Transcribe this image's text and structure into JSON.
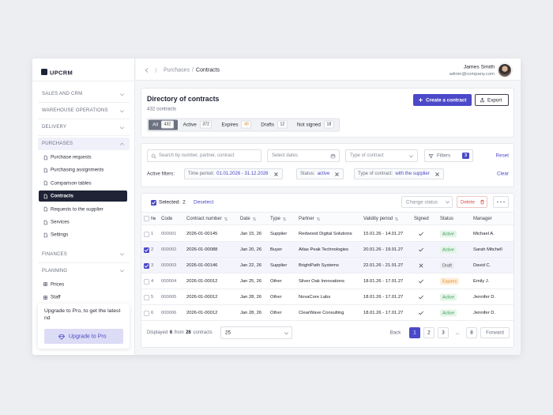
{
  "sidebar": {
    "logo": "UPCRM",
    "sections": [
      {
        "label": "SALES AND CRM"
      },
      {
        "label": "WAREHOUSE OPERATIONS"
      },
      {
        "label": "DELIVERY"
      },
      {
        "label": "PURCHASES",
        "expanded": true,
        "items": [
          {
            "label": "Purchase requests"
          },
          {
            "label": "Purchasing assignments"
          },
          {
            "label": "Comparison tables"
          },
          {
            "label": "Contracts",
            "active": true
          },
          {
            "label": "Requests to the supplier"
          },
          {
            "label": "Services"
          },
          {
            "label": "Settings"
          }
        ]
      },
      {
        "label": "FINANCES"
      },
      {
        "label": "PLANNING",
        "expanded": true,
        "items": [
          {
            "label": "Prices"
          },
          {
            "label": "Staff"
          }
        ]
      }
    ],
    "upgrade": {
      "text": "Upgrade to Pro, to get the latest nd",
      "button": "Upgrade to Pro"
    }
  },
  "header": {
    "breadcrumb": [
      "Purchases",
      "Contracts"
    ],
    "separator": "/",
    "user": {
      "name": "James Smith",
      "email": "admin@company.com"
    }
  },
  "directory": {
    "title": "Directory of contracts",
    "count_label": "432 contracts",
    "create": "Create a contract",
    "export": "Export",
    "tabs": [
      {
        "label": "All",
        "count": "432",
        "active": true
      },
      {
        "label": "Active",
        "count": "372"
      },
      {
        "label": "Expires",
        "count": "48",
        "tone": "warning"
      },
      {
        "label": "Drafts",
        "count": "12"
      },
      {
        "label": "Not signed",
        "count": "18"
      }
    ]
  },
  "filters": {
    "search_placeholder": "Search by number, partner, contract",
    "dates_placeholder": "Select dates",
    "type_placeholder": "Type of contract",
    "filters_button": "Filters",
    "filters_count": "3",
    "reset": "Reset",
    "active_label": "Active filters:",
    "chips": [
      {
        "key": "Time period:",
        "value": "01.01.2026 - 31.12.2026"
      },
      {
        "key": "Status:",
        "value": "active"
      },
      {
        "key": "Type of contract:",
        "value": "with the supplier"
      }
    ],
    "clear": "Clear"
  },
  "table": {
    "selected_label": "Selected:",
    "selected_count": "2",
    "deselect": "Deselect",
    "change_status": "Change status",
    "delete": "Delete",
    "columns": [
      {
        "label": "№"
      },
      {
        "label": "Code"
      },
      {
        "label": "Contract number",
        "sortable": true
      },
      {
        "label": "Date",
        "sortable": true
      },
      {
        "label": "Type",
        "sortable": true
      },
      {
        "label": "Partner",
        "sortable": true
      },
      {
        "label": "Validity period",
        "sortable": true
      },
      {
        "label": "Signed"
      },
      {
        "label": "Status"
      },
      {
        "label": "Manager"
      }
    ],
    "rows": [
      {
        "selected": false,
        "cells": [
          "1",
          "000001",
          "2026-01-00145",
          "Jan 15, 26",
          "Supplier",
          "Redwood Digital Solutions",
          "15.01.26 - 14.01.27"
        ],
        "signed": true,
        "status": "Active",
        "tone": "success",
        "manager": "Michael A."
      },
      {
        "selected": true,
        "cells": [
          "2",
          "000002",
          "2026-01-00088",
          "Jan 20, 26",
          "Buyer",
          "Atlas Peak Technologies",
          "20.01.26 - 19.01.27"
        ],
        "signed": true,
        "status": "Active",
        "tone": "success",
        "manager": "Sarah Mitchell"
      },
      {
        "selected": true,
        "cells": [
          "3",
          "000003",
          "2026-01-00146",
          "Jan 22, 26",
          "Supplier",
          "BrightPath Systems",
          "22.01.26 - 21.01.27"
        ],
        "signed": false,
        "status": "Draft",
        "tone": "neutral",
        "manager": "David C."
      },
      {
        "selected": false,
        "cells": [
          "4",
          "000004",
          "2026-01-00012",
          "Jan 25, 26",
          "Other",
          "Silver Oak Innovations",
          "18.01.26 - 17.01.27"
        ],
        "signed": true,
        "status": "Expires",
        "tone": "warning",
        "manager": "Emily J."
      },
      {
        "selected": false,
        "cells": [
          "5",
          "000005",
          "2026-01-00012",
          "Jan 28, 26",
          "Other",
          "NovaCore Labs",
          "18.01.26 - 17.01.27"
        ],
        "signed": true,
        "status": "Active",
        "tone": "success",
        "manager": "Jennifer D."
      },
      {
        "selected": false,
        "cells": [
          "6",
          "000006",
          "2026-01-00012",
          "Jan 28, 26",
          "Other",
          "ClearWave Consulting",
          "18.01.26 - 17.01.27"
        ],
        "signed": true,
        "status": "Active",
        "tone": "success",
        "manager": "Jennifer D."
      }
    ],
    "footer": {
      "displayed": "Displayed",
      "shown": "6",
      "from": "from",
      "total": "26",
      "unit": "contracts",
      "page_size": "25",
      "back": "Back",
      "pages": [
        {
          "label": "1",
          "current": true
        },
        {
          "label": "2"
        },
        {
          "label": "3"
        },
        {
          "label": "...",
          "plain": true
        },
        {
          "label": "8"
        }
      ],
      "forward": "Forward"
    }
  }
}
